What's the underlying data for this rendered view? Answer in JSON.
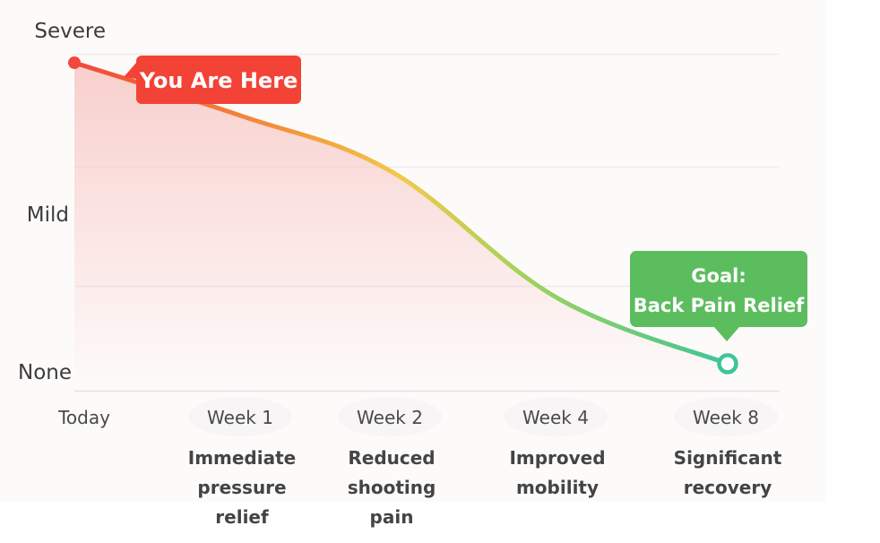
{
  "chart_data": {
    "type": "line",
    "title": "",
    "xlabel": "",
    "ylabel": "",
    "y_levels": [
      "None",
      "Mild",
      "Severe"
    ],
    "y_ticks": [
      {
        "label": "Severe",
        "value": 2
      },
      {
        "label": "Mild",
        "value": 1
      },
      {
        "label": "None",
        "value": 0
      }
    ],
    "ylim": [
      0,
      2
    ],
    "grid": true,
    "categories": [
      {
        "label": "Today",
        "description": []
      },
      {
        "label": "Week 1",
        "description": [
          "Immediate",
          "pressure",
          "relief"
        ]
      },
      {
        "label": "Week 2",
        "description": [
          "Reduced",
          "shooting",
          "pain"
        ]
      },
      {
        "label": "Week 4",
        "description": [
          "Improved",
          "mobility"
        ]
      },
      {
        "label": "Week 8",
        "description": [
          "Significant",
          "recovery"
        ]
      }
    ],
    "series": [
      {
        "values": [
          1.82,
          1.63,
          1.3,
          0.55,
          0.16
        ]
      }
    ],
    "annotations": {
      "start": {
        "text": "You Are Here",
        "color": "#f34236"
      },
      "goal": {
        "lines": [
          "Goal:",
          "Back Pain Relief"
        ],
        "color": "#5cbd5e"
      }
    },
    "colors": {
      "gradient": [
        "#f2473d",
        "#f4923a",
        "#f2c94a",
        "#a4d35a",
        "#3ec498"
      ],
      "area": "#f7c9c6"
    }
  }
}
